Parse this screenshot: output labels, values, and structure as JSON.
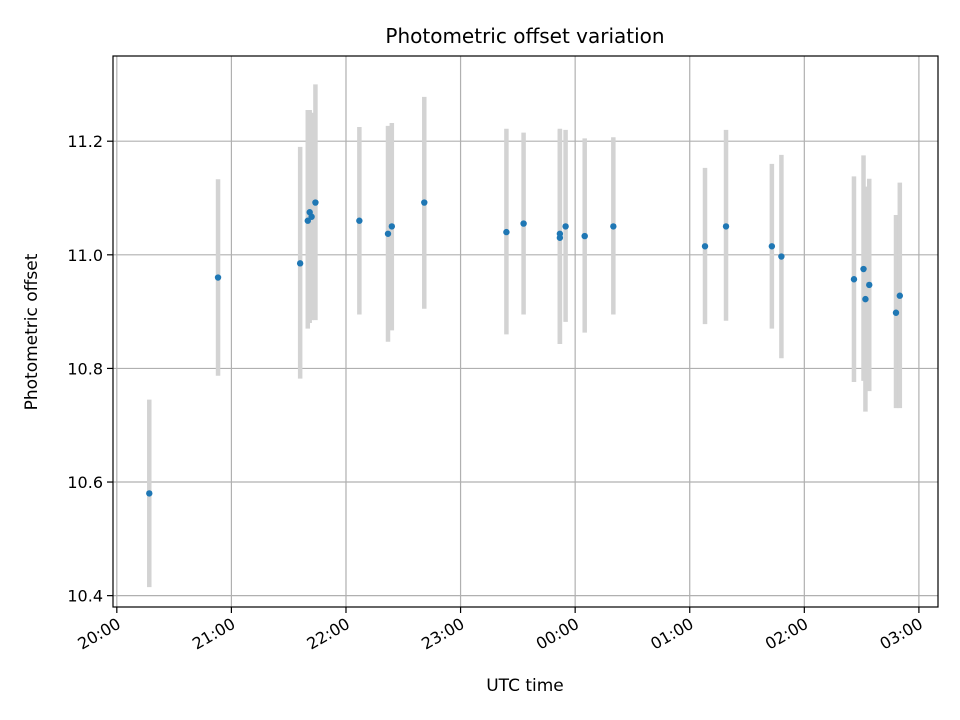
{
  "chart_data": {
    "type": "scatter",
    "title": "Photometric offset variation",
    "xlabel": "UTC time",
    "ylabel": "Photometric offset",
    "x_axis": {
      "kind": "time",
      "range": [
        "19:58",
        "03:10"
      ],
      "ticks": [
        "20:00",
        "21:00",
        "22:00",
        "23:00",
        "00:00",
        "01:00",
        "02:00",
        "03:00"
      ]
    },
    "y_axis": {
      "range": [
        10.38,
        11.35
      ],
      "ticks": [
        "10.4",
        "10.6",
        "10.8",
        "11.0",
        "11.2"
      ]
    },
    "grid": true,
    "colors": {
      "point": "#1f77b4",
      "errorbar": "#d3d3d3",
      "grid": "#b0b0b0"
    },
    "points": [
      {
        "t": "20:17",
        "y": 10.58,
        "lo": 10.415,
        "hi": 10.745
      },
      {
        "t": "20:53",
        "y": 10.96,
        "lo": 10.787,
        "hi": 11.133
      },
      {
        "t": "21:36",
        "y": 10.985,
        "lo": 10.782,
        "hi": 11.19
      },
      {
        "t": "21:40",
        "y": 11.06,
        "lo": 10.87,
        "hi": 11.255
      },
      {
        "t": "21:41",
        "y": 11.075,
        "lo": 10.88,
        "hi": 11.255
      },
      {
        "t": "21:42",
        "y": 11.067,
        "lo": 10.885,
        "hi": 11.25
      },
      {
        "t": "21:44",
        "y": 11.092,
        "lo": 10.885,
        "hi": 11.3
      },
      {
        "t": "22:07",
        "y": 11.06,
        "lo": 10.895,
        "hi": 11.225
      },
      {
        "t": "22:22",
        "y": 11.037,
        "lo": 10.847,
        "hi": 11.227
      },
      {
        "t": "22:24",
        "y": 11.05,
        "lo": 10.867,
        "hi": 11.232
      },
      {
        "t": "22:41",
        "y": 11.092,
        "lo": 10.905,
        "hi": 11.278
      },
      {
        "t": "23:24",
        "y": 11.04,
        "lo": 10.86,
        "hi": 11.222
      },
      {
        "t": "23:33",
        "y": 11.055,
        "lo": 10.895,
        "hi": 11.215
      },
      {
        "t": "23:52",
        "y": 11.037,
        "lo": 10.843,
        "hi": 11.222
      },
      {
        "t": "23:52",
        "y": 11.03,
        "lo": 10.843,
        "hi": 11.22
      },
      {
        "t": "23:55",
        "y": 11.05,
        "lo": 10.882,
        "hi": 11.22
      },
      {
        "t": "00:05",
        "y": 11.033,
        "lo": 10.863,
        "hi": 11.205
      },
      {
        "t": "00:20",
        "y": 11.05,
        "lo": 10.895,
        "hi": 11.207
      },
      {
        "t": "01:08",
        "y": 11.015,
        "lo": 10.878,
        "hi": 11.153
      },
      {
        "t": "01:19",
        "y": 11.05,
        "lo": 10.884,
        "hi": 11.22
      },
      {
        "t": "01:43",
        "y": 11.015,
        "lo": 10.87,
        "hi": 11.16
      },
      {
        "t": "01:48",
        "y": 10.997,
        "lo": 10.818,
        "hi": 11.176
      },
      {
        "t": "02:26",
        "y": 10.957,
        "lo": 10.776,
        "hi": 11.138
      },
      {
        "t": "02:31",
        "y": 10.975,
        "lo": 10.778,
        "hi": 11.175
      },
      {
        "t": "02:32",
        "y": 10.922,
        "lo": 10.724,
        "hi": 11.12
      },
      {
        "t": "02:34",
        "y": 10.947,
        "lo": 10.76,
        "hi": 11.134
      },
      {
        "t": "02:48",
        "y": 10.898,
        "lo": 10.73,
        "hi": 11.07
      },
      {
        "t": "02:50",
        "y": 10.928,
        "lo": 10.73,
        "hi": 11.127
      }
    ]
  }
}
